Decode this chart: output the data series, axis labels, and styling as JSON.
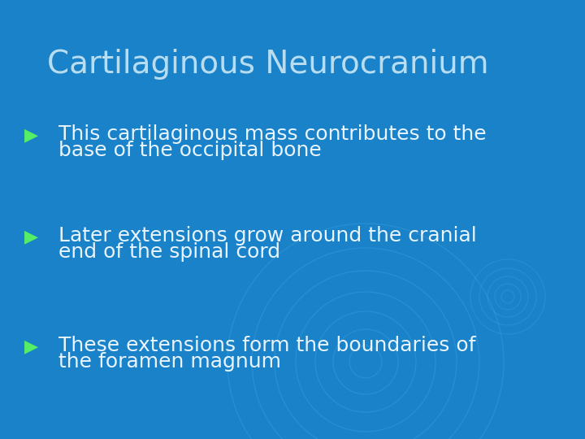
{
  "title": "Cartilaginous Neurocranium",
  "title_color": "#b8ddf0",
  "title_fontsize": 28,
  "background_color": "#1a82c8",
  "bullet_color": "#55ee66",
  "text_color": "#e8f4ff",
  "bullets": [
    {
      "line1": "This cartilaginous mass contributes to the",
      "line2": "base of the occipital bone"
    },
    {
      "line1": "Later extensions grow around the cranial",
      "line2": "end of the spinal cord"
    },
    {
      "line1": "These extensions form the boundaries of",
      "line2": "the foramen magnum"
    }
  ],
  "bullet_fontsize": 18,
  "figsize": [
    7.2,
    5.4
  ],
  "dpi": 100,
  "watermark_color": "#3a9de0",
  "watermark_alpha": 0.45
}
